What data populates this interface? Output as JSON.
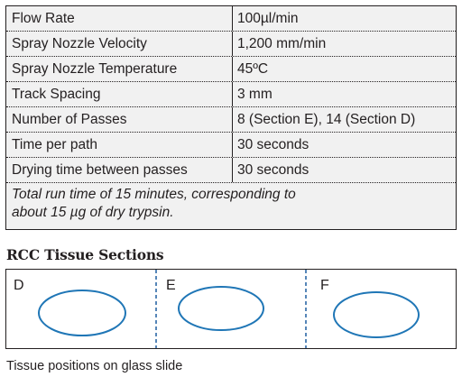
{
  "parameters": [
    {
      "name": "Flow Rate",
      "value": "100µl/min"
    },
    {
      "name": "Spray Nozzle Velocity",
      "value": "1,200 mm/min"
    },
    {
      "name": "Spray Nozzle Temperature",
      "value": "45ºC"
    },
    {
      "name": "Track Spacing",
      "value": "3 mm"
    },
    {
      "name": "Number of Passes",
      "value": "8 (Section E), 14 (Section D)"
    },
    {
      "name": "Time per path",
      "value": "30 seconds"
    },
    {
      "name": "Drying time between passes",
      "value": "30 seconds"
    }
  ],
  "note_line1": "Total run time of 15 minutes, corresponding to",
  "note_line2": "about 15 µg of dry trypsin.",
  "section_title": "RCC Tissue Sections",
  "sections": [
    {
      "label": "D"
    },
    {
      "label": "E"
    },
    {
      "label": "F"
    }
  ],
  "caption": "Tissue positions on glass slide",
  "colors": {
    "tissue_outline": "#1f76b6",
    "divider": "#1f5fa0",
    "table_bg": "#f1f1f1"
  }
}
